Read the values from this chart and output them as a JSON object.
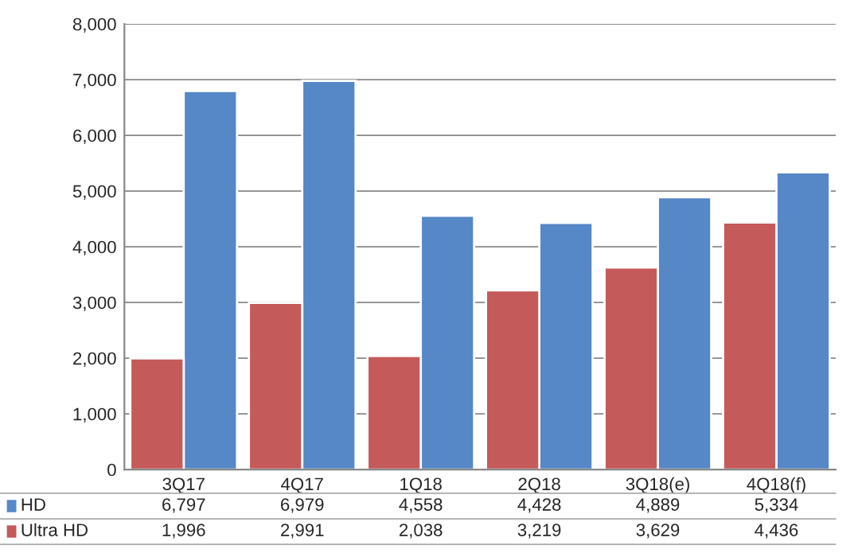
{
  "chart_data": {
    "type": "bar",
    "categories": [
      "3Q17",
      "4Q17",
      "1Q18",
      "2Q18",
      "3Q18(e)",
      "4Q18(f)"
    ],
    "series": [
      {
        "name": "HD",
        "color": "#5687c6",
        "values": [
          6797,
          6979,
          4558,
          4428,
          4889,
          5334
        ],
        "value_labels": [
          "6,797",
          "6,979",
          "4,558",
          "4,428",
          "4,889",
          "5,334"
        ]
      },
      {
        "name": "Ultra HD",
        "color": "#c55a5a",
        "values": [
          1996,
          2991,
          2038,
          3219,
          3629,
          4436
        ],
        "value_labels": [
          "1,996",
          "2,991",
          "2,038",
          "3,219",
          "3,629",
          "4,436"
        ]
      }
    ],
    "ylim": [
      0,
      8000
    ],
    "yticks": [
      0,
      {
        "value": 1000,
        "label": "1,000"
      },
      {
        "value": 2000,
        "label": "2,000"
      },
      {
        "value": 3000,
        "label": "3,000"
      },
      {
        "value": 4000,
        "label": "4,000"
      },
      {
        "value": 5000,
        "label": "5,000"
      },
      {
        "value": 6000,
        "label": "6,000"
      },
      {
        "value": 7000,
        "label": "7,000"
      },
      {
        "value": 8000,
        "label": "8,000"
      }
    ],
    "grid": "y",
    "legend": "bottom"
  }
}
